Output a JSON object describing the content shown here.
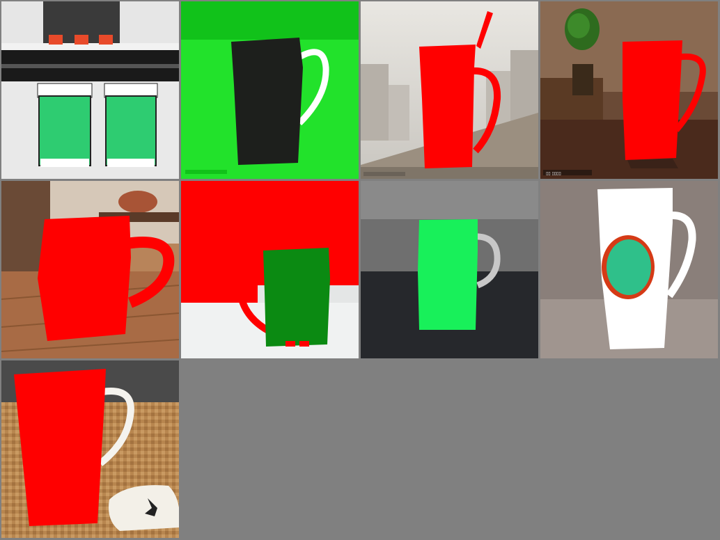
{
  "grid": {
    "columns": 4,
    "rows": 3,
    "background": "#808080",
    "tiles": [
      {
        "subject": "two-green-cups-icon",
        "colors": [
          "#2ecc71",
          "#ffffff",
          "#1a1a1a",
          "#e84a2a"
        ]
      },
      {
        "subject": "black-mug-icon",
        "colors": [
          "#1d1f1c",
          "#22e22b",
          "#ffffff"
        ]
      },
      {
        "subject": "red-mug-with-straw-icon",
        "colors": [
          "#ff0000",
          "#b9b6b2",
          "#9b8f80"
        ]
      },
      {
        "subject": "red-tall-mug-icon",
        "colors": [
          "#ff0000",
          "#4a2a1c",
          "#2e6b1e"
        ]
      },
      {
        "subject": "red-mug-on-table-icon",
        "colors": [
          "#ff0000",
          "#a86b45",
          "#6a4a36"
        ]
      },
      {
        "subject": "green-mug-on-red-icon",
        "colors": [
          "#0b8a12",
          "#ff0000",
          "#e4e6e6"
        ]
      },
      {
        "subject": "bright-green-mug-icon",
        "colors": [
          "#18f05a",
          "#2b2d31",
          "#6f6f6f"
        ]
      },
      {
        "subject": "white-mug-with-teal-logo-icon",
        "colors": [
          "#ffffff",
          "#2fc08a",
          "#d53a16",
          "#8a7f7a"
        ]
      },
      {
        "subject": "red-mug-on-woven-mat-icon",
        "colors": [
          "#ff0000",
          "#b8864f",
          "#f3f0e8"
        ]
      }
    ]
  }
}
